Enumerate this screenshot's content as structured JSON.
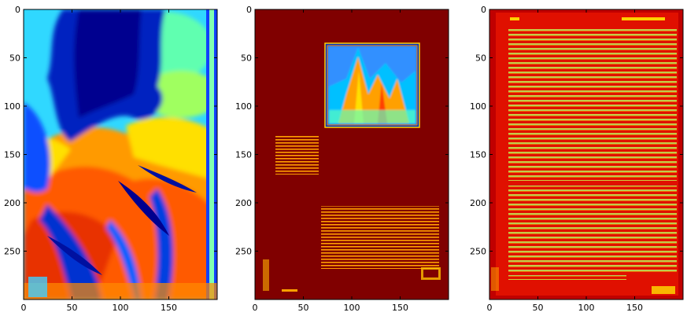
{
  "chart_data": [
    {
      "type": "heatmap",
      "title": "",
      "xlabel": "",
      "ylabel": "",
      "colormap": "jet",
      "xlim": [
        0,
        200
      ],
      "ylim": [
        300,
        0
      ],
      "xticks": [
        0,
        50,
        100,
        150
      ],
      "yticks": [
        0,
        50,
        100,
        150,
        200,
        250
      ],
      "content": "scanned page, mostly full-page photographic content"
    },
    {
      "type": "heatmap",
      "title": "",
      "xlabel": "",
      "ylabel": "",
      "colormap": "jet",
      "xlim": [
        0,
        200
      ],
      "ylim": [
        300,
        0
      ],
      "xticks": [
        0,
        50,
        100,
        150
      ],
      "yticks": [
        0,
        50,
        100,
        150,
        200,
        250
      ],
      "content": "scanned page with illustration at top right and text blocks below"
    },
    {
      "type": "heatmap",
      "title": "",
      "xlabel": "",
      "ylabel": "",
      "colormap": "jet",
      "xlim": [
        0,
        200
      ],
      "ylim": [
        300,
        0
      ],
      "xticks": [
        0,
        50,
        100,
        150
      ],
      "yticks": [
        0,
        50,
        100,
        150,
        200,
        250
      ],
      "content": "scanned page of dense text"
    }
  ],
  "colors": {
    "jet_dark_red": "#800000",
    "jet_red": "#ff2000",
    "jet_orange": "#ff8c00",
    "jet_yellow": "#ffe000",
    "jet_cyan": "#20e8ff",
    "jet_blue": "#0040ff",
    "jet_dark_blue": "#00008f"
  }
}
